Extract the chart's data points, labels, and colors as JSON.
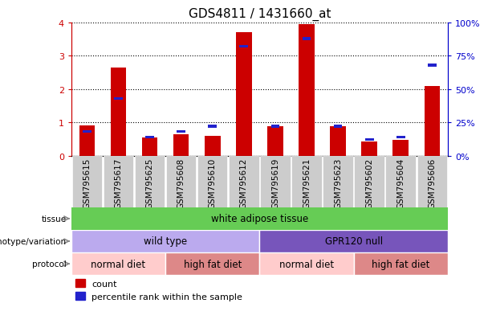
{
  "title": "GDS4811 / 1431660_at",
  "samples": [
    "GSM795615",
    "GSM795617",
    "GSM795625",
    "GSM795608",
    "GSM795610",
    "GSM795612",
    "GSM795619",
    "GSM795621",
    "GSM795623",
    "GSM795602",
    "GSM795604",
    "GSM795606"
  ],
  "count_values": [
    0.9,
    2.65,
    0.55,
    0.65,
    0.6,
    3.7,
    0.88,
    3.95,
    0.88,
    0.43,
    0.47,
    2.08
  ],
  "percentile_values": [
    0.18,
    0.43,
    0.14,
    0.18,
    0.22,
    0.82,
    0.22,
    0.88,
    0.22,
    0.12,
    0.14,
    0.68
  ],
  "ylim": [
    0,
    4
  ],
  "yticks_left": [
    0,
    1,
    2,
    3,
    4
  ],
  "yticks_right_vals": [
    0,
    25,
    50,
    75,
    100
  ],
  "bar_color": "#cc0000",
  "percentile_color": "#2222cc",
  "bar_width": 0.5,
  "tissue_label": "tissue",
  "tissue_text": "white adipose tissue",
  "tissue_color": "#66cc55",
  "genotype_label": "genotype/variation",
  "genotype_groups": [
    {
      "text": "wild type",
      "color": "#bbaaee",
      "start": 0,
      "end": 6
    },
    {
      "text": "GPR120 null",
      "color": "#7755bb",
      "start": 6,
      "end": 12
    }
  ],
  "protocol_label": "protocol",
  "protocol_groups": [
    {
      "text": "normal diet",
      "color": "#ffcccc",
      "start": 0,
      "end": 3
    },
    {
      "text": "high fat diet",
      "color": "#dd8888",
      "start": 3,
      "end": 6
    },
    {
      "text": "normal diet",
      "color": "#ffcccc",
      "start": 6,
      "end": 9
    },
    {
      "text": "high fat diet",
      "color": "#dd8888",
      "start": 9,
      "end": 12
    }
  ],
  "legend_count_label": "count",
  "legend_percentile_label": "percentile rank within the sample",
  "plot_bg_color": "#ffffff",
  "xtick_bg_color": "#cccccc",
  "left_axis_color": "#cc0000",
  "right_axis_color": "#0000cc",
  "arrow_color": "#888888"
}
